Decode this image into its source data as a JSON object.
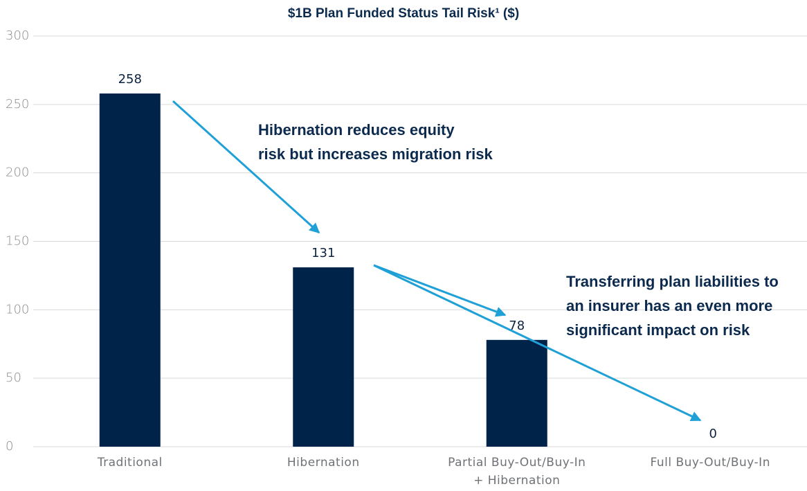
{
  "chart_data": {
    "type": "bar",
    "title": "$1B Plan Funded Status Tail Risk¹ ($)",
    "categories": [
      "Traditional",
      "Hibernation",
      "Partial Buy-Out/Buy-In\n+ Hibernation",
      "Full Buy-Out/Buy-In"
    ],
    "values": [
      258,
      131,
      78,
      0
    ],
    "color": "#00234a",
    "ylim": [
      0,
      300
    ],
    "yticks": [
      0,
      50,
      100,
      150,
      200,
      250,
      300
    ],
    "grid": true,
    "annotations": [
      "Hibernation reduces equity\nrisk but increases migration risk",
      "Transferring plan liabilities to\nan insurer has an even more\nsignificant impact on risk"
    ]
  }
}
